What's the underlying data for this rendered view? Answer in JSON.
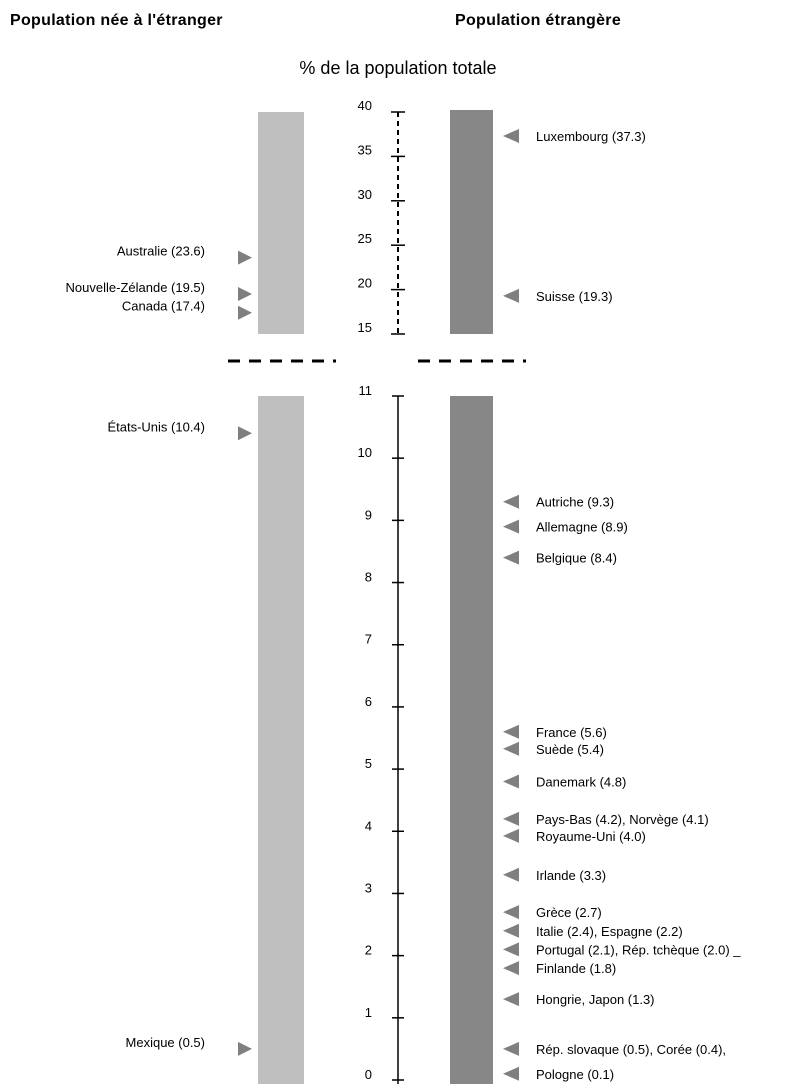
{
  "headers": {
    "left": "Population née à l'étranger",
    "right": "Population étrangère"
  },
  "chart_data": {
    "type": "bar",
    "title": "% de la population totale",
    "axis": {
      "upper": {
        "range": [
          15,
          40
        ],
        "ticks": [
          15,
          20,
          25,
          30,
          35,
          40
        ],
        "style": "dashed"
      },
      "lower": {
        "range": [
          0,
          11
        ],
        "ticks": [
          0,
          1,
          2,
          3,
          4,
          5,
          6,
          7,
          8,
          9,
          10,
          11
        ],
        "style": "solid"
      }
    },
    "colors": {
      "left_bar": "#bfbfbf",
      "right_bar": "#878787",
      "marker": "#7f7f7f"
    },
    "series": [
      {
        "name": "Population née à l'étranger",
        "side": "left",
        "points": [
          {
            "label": "Australie  (23.6)",
            "value": 23.6
          },
          {
            "label": "Nouvelle-Zélande (19.5)",
            "value": 19.5
          },
          {
            "label": "Canada (17.4)",
            "value": 17.4
          },
          {
            "label": "États-Unis (10.4)",
            "value": 10.4
          },
          {
            "label": "Mexique (0.5)",
            "value": 0.5
          }
        ]
      },
      {
        "name": "Population étrangère",
        "side": "right",
        "points": [
          {
            "label": "Luxembourg (37.3)",
            "value": 37.3
          },
          {
            "label": "Suisse (19.3)",
            "value": 19.3
          },
          {
            "label": "Autriche (9.3)",
            "value": 9.3
          },
          {
            "label": "Allemagne (8.9)",
            "value": 8.9
          },
          {
            "label": "Belgique (8.4)",
            "value": 8.4
          },
          {
            "label": "France (5.6)",
            "value": 5.6
          },
          {
            "label": "Suède (5.4)",
            "value": 5.4
          },
          {
            "label": "Danemark (4.8)",
            "value": 4.8
          },
          {
            "label": "Pays-Bas (4.2), Norvège (4.1)",
            "value": 4.2
          },
          {
            "label": "Royaume-Uni (4.0)",
            "value": 4.0
          },
          {
            "label": "Irlande (3.3)",
            "value": 3.3
          },
          {
            "label": "Grèce (2.7)",
            "value": 2.7
          },
          {
            "label": "Italie (2.4), Espagne (2.2)",
            "value": 2.4
          },
          {
            "label": "Portugal (2.1), Rép. tchèque (2.0) _",
            "value": 2.1
          },
          {
            "label": "Finlande (1.8)",
            "value": 1.8
          },
          {
            "label": "Hongrie, Japon (1.3)",
            "value": 1.3
          },
          {
            "label": "Rép. slovaque (0.5), Corée (0.4),",
            "value": 0.5
          },
          {
            "label": "Pologne (0.1)",
            "value": 0.1
          }
        ]
      }
    ]
  }
}
